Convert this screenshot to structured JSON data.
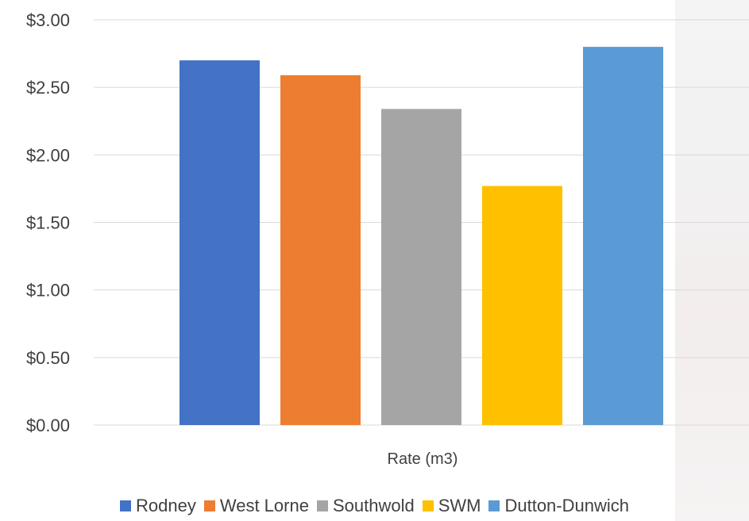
{
  "chart_data": {
    "type": "bar",
    "categories": [
      "Rate (m3)"
    ],
    "xlabel": "Rate (m3)",
    "ylabel": "",
    "title": "",
    "ylim": [
      0,
      3
    ],
    "yticks": [
      "$0.00",
      "$0.50",
      "$1.00",
      "$1.50",
      "$2.00",
      "$2.50",
      "$3.00"
    ],
    "grid": true,
    "legend_position": "bottom",
    "series": [
      {
        "name": "Rodney",
        "values": [
          2.7
        ],
        "color": "#4472c4"
      },
      {
        "name": "West Lorne",
        "values": [
          2.59
        ],
        "color": "#ed7d31"
      },
      {
        "name": "Southwold",
        "values": [
          2.34
        ],
        "color": "#a5a5a5"
      },
      {
        "name": "SWM",
        "values": [
          1.77
        ],
        "color": "#ffc000"
      },
      {
        "name": "Dutton-Dunwich",
        "values": [
          2.8
        ],
        "color": "#5b9bd5"
      }
    ]
  }
}
